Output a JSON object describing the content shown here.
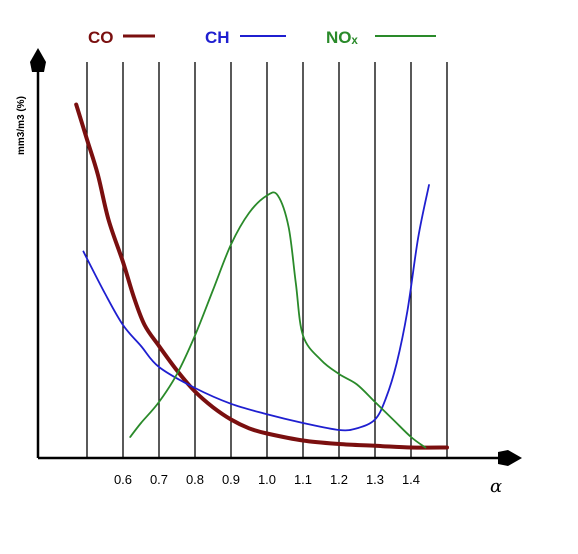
{
  "chart_data": {
    "type": "line",
    "title": "",
    "xlabel": "α",
    "ylabel": "mm3/m3 (%)",
    "x_ticks": [
      "0.6",
      "0.7",
      "0.8",
      "0.9",
      "1.0",
      "1.1",
      "1.2",
      "1.3",
      "1.4"
    ],
    "xlim": [
      0.45,
      1.55
    ],
    "ylim": [
      0,
      100
    ],
    "grid": "vertical",
    "legend_position": "top",
    "series": [
      {
        "name": "CO",
        "color": "#7a0f0f",
        "x": [
          0.47,
          0.5,
          0.53,
          0.56,
          0.6,
          0.63,
          0.66,
          0.7,
          0.75,
          0.8,
          0.85,
          0.9,
          0.95,
          1.0,
          1.1,
          1.2,
          1.3,
          1.4,
          1.5
        ],
        "y": [
          101,
          91,
          81,
          68,
          56,
          46,
          38,
          32,
          25,
          19,
          14.5,
          11,
          8.5,
          7,
          5,
          4,
          3.5,
          3,
          3
        ]
      },
      {
        "name": "CH",
        "color": "#1f1fd0",
        "x": [
          0.49,
          0.55,
          0.6,
          0.65,
          0.7,
          0.8,
          0.9,
          1.0,
          1.1,
          1.2,
          1.25,
          1.3,
          1.33,
          1.36,
          1.39,
          1.42,
          1.45
        ],
        "y": [
          59,
          47,
          38,
          32,
          26,
          20,
          15.5,
          12.5,
          10,
          8,
          8.5,
          11,
          17,
          27,
          42,
          63,
          78
        ]
      },
      {
        "name": "NOₓ",
        "color": "#2a8a2a",
        "x": [
          0.62,
          0.65,
          0.7,
          0.75,
          0.8,
          0.85,
          0.9,
          0.95,
          1.0,
          1.03,
          1.06,
          1.08,
          1.1,
          1.15,
          1.2,
          1.25,
          1.3,
          1.35,
          1.4,
          1.44
        ],
        "y": [
          6,
          10,
          16,
          24,
          35,
          48,
          61,
          70,
          75,
          75,
          66,
          50,
          35,
          28,
          24,
          21,
          16,
          11,
          6,
          3
        ]
      }
    ]
  }
}
